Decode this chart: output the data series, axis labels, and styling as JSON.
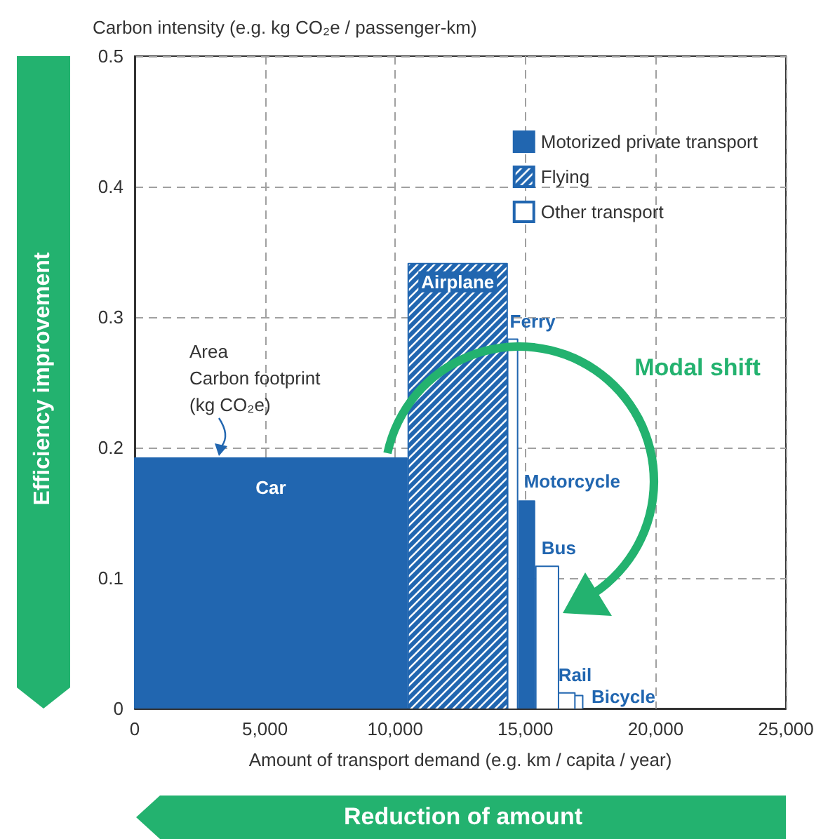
{
  "chart_data": {
    "type": "area",
    "xlabel": "Amount of transport demand (e.g. km / capita / year)",
    "ylabel": "Carbon intensity (e.g. kg CO₂e / passenger-km)",
    "series": [
      {
        "name": "Motorized private transport",
        "color": "#2166b0",
        "x": [
          0,
          0,
          10450,
          10450,
          12600,
          14750,
          14750,
          15350,
          15350
        ],
        "values": [
          0,
          0.192,
          0.192,
          0,
          null,
          0,
          0.159,
          0.159,
          0
        ]
      },
      {
        "name": "Flying",
        "color": "#2166b0",
        "x": [
          10500,
          10500,
          14300,
          14300
        ],
        "values": [
          0,
          0.341,
          0.341,
          0
        ]
      },
      {
        "name": "Other transport",
        "color": "#2166b0",
        "x": [
          14320,
          14320,
          14700,
          14700,
          15050,
          15400,
          15400,
          16270,
          16270,
          16270,
          16900,
          16900,
          16900,
          16900,
          17200,
          17200
        ],
        "values": [
          0,
          0.283,
          0.283,
          0,
          null,
          0,
          0.109,
          0.109,
          0,
          0.012,
          0.012,
          0,
          0,
          0.01,
          0.01,
          0
        ]
      }
    ],
    "xlim": [
      0,
      25000
    ],
    "xticks": [
      {
        "value": 0,
        "label": "0"
      },
      {
        "value": 5000,
        "label": "5,000"
      },
      {
        "value": 10000,
        "label": "10,000"
      },
      {
        "value": 15000,
        "label": "15,000"
      },
      {
        "value": 20000,
        "label": "20,000"
      },
      {
        "value": 25000,
        "label": "25,000"
      }
    ],
    "ylim": [
      0,
      0.5
    ],
    "yticks": [
      0,
      0.1,
      0.2,
      0.3,
      0.4,
      0.5
    ],
    "grid": true,
    "legend": "top right",
    "annotations": [
      {
        "text": "Car",
        "x": 5225,
        "y": 0.192
      },
      {
        "text": "Airplane",
        "x": 12400,
        "y": 0.341
      },
      {
        "text": "Ferry",
        "x": 14510,
        "y": 0.283
      },
      {
        "text": "Motorcycle",
        "x": 15050,
        "y": 0.159
      },
      {
        "text": "Bus",
        "x": 15835,
        "y": 0.109
      },
      {
        "text": "Rail",
        "x": 16585,
        "y": 0.012
      },
      {
        "text": "Bicycle",
        "x": 17050,
        "y": 0.01
      },
      "Area\nCarbon footprint\n(kg CO₂e)",
      "Modal shift",
      "Efficiency improvement",
      "Reduction of amount"
    ]
  }
}
